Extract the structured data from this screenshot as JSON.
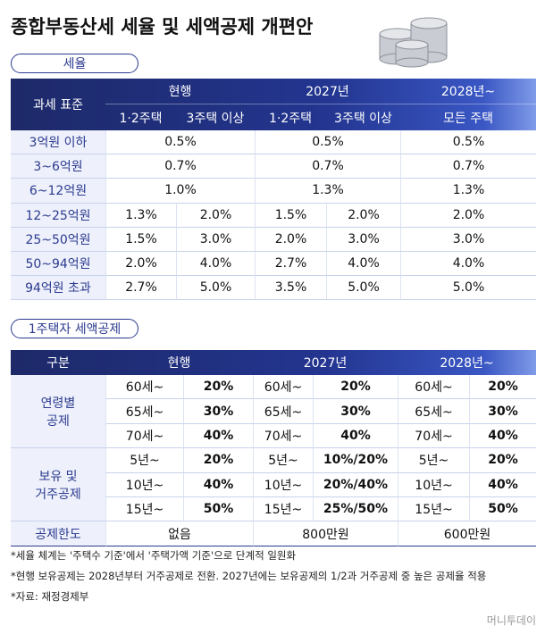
{
  "title": "종합부동산세 세율 및 세액공제 개편안",
  "tax_rate": {
    "label": "세율",
    "header": {
      "base": "과세 표준",
      "groups": [
        "현행",
        "2027년",
        "2028년~"
      ],
      "sub": [
        "1·2주택",
        "3주택 이상",
        "1·2주택",
        "3주택 이상",
        "모든 주택"
      ]
    },
    "rows": [
      {
        "label": "3억원 이하",
        "cells": [
          "0.5%",
          "0.5%",
          "0.5%"
        ]
      },
      {
        "label": "3~6억원",
        "cells": [
          "0.7%",
          "0.7%",
          "0.7%"
        ]
      },
      {
        "label": "6~12억원",
        "cells": [
          "1.0%",
          "1.3%",
          "1.3%"
        ]
      },
      {
        "label": "12~25억원",
        "cells": [
          "1.3%",
          "2.0%",
          "1.5%",
          "2.0%",
          "2.0%"
        ]
      },
      {
        "label": "25~50억원",
        "cells": [
          "1.5%",
          "3.0%",
          "2.0%",
          "3.0%",
          "3.0%"
        ]
      },
      {
        "label": "50~94억원",
        "cells": [
          "2.0%",
          "4.0%",
          "2.7%",
          "4.0%",
          "4.0%"
        ]
      },
      {
        "label": "94억원 초과",
        "cells": [
          "2.7%",
          "5.0%",
          "3.5%",
          "5.0%",
          "5.0%"
        ]
      }
    ]
  },
  "deduction": {
    "label": "1주택자 세액공제",
    "header": [
      "구분",
      "현행",
      "2027년",
      "2028년~"
    ],
    "groups": [
      {
        "label": [
          "연령별",
          "공제"
        ],
        "rows": [
          [
            [
              "60세~",
              "20%"
            ],
            [
              "60세~",
              "20%"
            ],
            [
              "60세~",
              "20%"
            ]
          ],
          [
            [
              "65세~",
              "30%"
            ],
            [
              "65세~",
              "30%"
            ],
            [
              "65세~",
              "30%"
            ]
          ],
          [
            [
              "70세~",
              "40%"
            ],
            [
              "70세~",
              "40%"
            ],
            [
              "70세~",
              "40%"
            ]
          ]
        ]
      },
      {
        "label": [
          "보유 및",
          "거주공제"
        ],
        "rows": [
          [
            [
              "5년~",
              "20%"
            ],
            [
              "5년~",
              "10%/20%"
            ],
            [
              "5년~",
              "20%"
            ]
          ],
          [
            [
              "10년~",
              "40%"
            ],
            [
              "10년~",
              "20%/40%"
            ],
            [
              "10년~",
              "40%"
            ]
          ],
          [
            [
              "15년~",
              "50%"
            ],
            [
              "15년~",
              "25%/50%"
            ],
            [
              "15년~",
              "50%"
            ]
          ]
        ]
      }
    ],
    "limit": {
      "label": "공제한도",
      "values": [
        "없음",
        "800만원",
        "600만원"
      ]
    }
  },
  "notes": [
    "*세율 체계는 '주택수 기준'에서 '주택가액 기준'으로 단계적 일원화",
    "*현행 보유공제는 2028년부터 거주공제로 전환. 2027년에는 보유공제의 1/2과 거주공제 중 높은 공제율 적용",
    "*자료: 재정경제부"
  ],
  "credit": "머니투데이"
}
